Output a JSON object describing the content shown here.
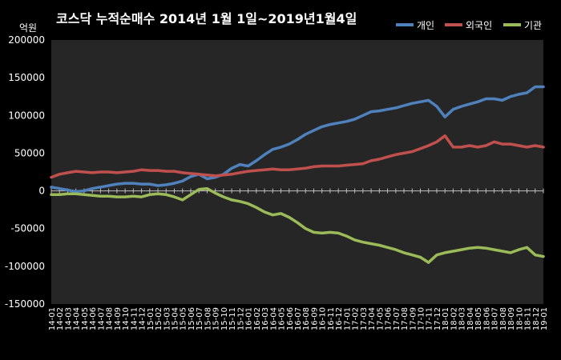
{
  "chart_data": {
    "type": "line",
    "title": "코스닥  누적순매수 2014년 1월 1일~2019년1월4일",
    "ylabel": "억원",
    "ylim": [
      -150000,
      200000
    ],
    "yticks": [
      200000,
      150000,
      100000,
      50000,
      0,
      -50000,
      -100000,
      -150000
    ],
    "legend_position": "top-right",
    "grid": false,
    "categories": [
      "14-01",
      "14-02",
      "14-03",
      "14-04",
      "14-05",
      "14-06",
      "14-07",
      "14-08",
      "14-09",
      "14-10",
      "14-11",
      "14-12",
      "15-01",
      "15-02",
      "15-03",
      "15-04",
      "15-05",
      "15-06",
      "15-07",
      "15-08",
      "15-09",
      "15-10",
      "15-11",
      "15-12",
      "16-01",
      "16-02",
      "16-03",
      "16-04",
      "16-05",
      "16-06",
      "16-07",
      "16-08",
      "16-09",
      "16-10",
      "16-11",
      "16-12",
      "17-01",
      "17-02",
      "17-03",
      "17-04",
      "17-05",
      "17-06",
      "17-07",
      "17-08",
      "17-09",
      "17-10",
      "17-11",
      "17-12",
      "18-01",
      "18-02",
      "18-03",
      "18-04",
      "18-05",
      "18-06",
      "18-07",
      "18-08",
      "18-09",
      "18-10",
      "18-11",
      "18-12",
      "19-01"
    ],
    "series": [
      {
        "name": "개인",
        "color": "#4f81bd",
        "values": [
          5000,
          3000,
          1000,
          -1000,
          0,
          3000,
          5000,
          7000,
          9000,
          10000,
          10000,
          9000,
          9000,
          7000,
          8000,
          10000,
          13000,
          19000,
          22000,
          16000,
          18000,
          22000,
          30000,
          35000,
          33000,
          40000,
          48000,
          55000,
          58000,
          62000,
          68000,
          75000,
          80000,
          85000,
          88000,
          90000,
          92000,
          95000,
          100000,
          105000,
          106000,
          108000,
          110000,
          113000,
          116000,
          118000,
          120000,
          112000,
          98000,
          108000,
          112000,
          115000,
          118000,
          122000,
          122000,
          120000,
          125000,
          128000,
          130000,
          138000,
          138000
        ]
      },
      {
        "name": "외국인",
        "color": "#c0504d",
        "values": [
          18000,
          22000,
          24000,
          26000,
          25000,
          24000,
          25000,
          25000,
          24000,
          25000,
          26000,
          28000,
          27000,
          27000,
          26000,
          26000,
          24000,
          23000,
          22000,
          21000,
          20000,
          21000,
          22000,
          24000,
          26000,
          27000,
          28000,
          29000,
          28000,
          28000,
          29000,
          30000,
          32000,
          33000,
          33000,
          33000,
          34000,
          35000,
          36000,
          40000,
          42000,
          45000,
          48000,
          50000,
          52000,
          56000,
          60000,
          65000,
          73000,
          58000,
          58000,
          60000,
          58000,
          60000,
          65000,
          62000,
          62000,
          60000,
          58000,
          60000,
          58000
        ]
      },
      {
        "name": "기관",
        "color": "#9bbb59",
        "values": [
          -5000,
          -5000,
          -4000,
          -4000,
          -5000,
          -6000,
          -7000,
          -7000,
          -8000,
          -8000,
          -7000,
          -8000,
          -5000,
          -4000,
          -5000,
          -8000,
          -12000,
          -5000,
          2000,
          3000,
          -3000,
          -8000,
          -12000,
          -14000,
          -17000,
          -22000,
          -28000,
          -32000,
          -30000,
          -35000,
          -42000,
          -50000,
          -55000,
          -56000,
          -55000,
          -56000,
          -60000,
          -65000,
          -68000,
          -70000,
          -72000,
          -75000,
          -78000,
          -82000,
          -85000,
          -88000,
          -95000,
          -85000,
          -82000,
          -80000,
          -78000,
          -76000,
          -75000,
          -76000,
          -78000,
          -80000,
          -82000,
          -78000,
          -75000,
          -85000,
          -87000
        ]
      }
    ]
  }
}
